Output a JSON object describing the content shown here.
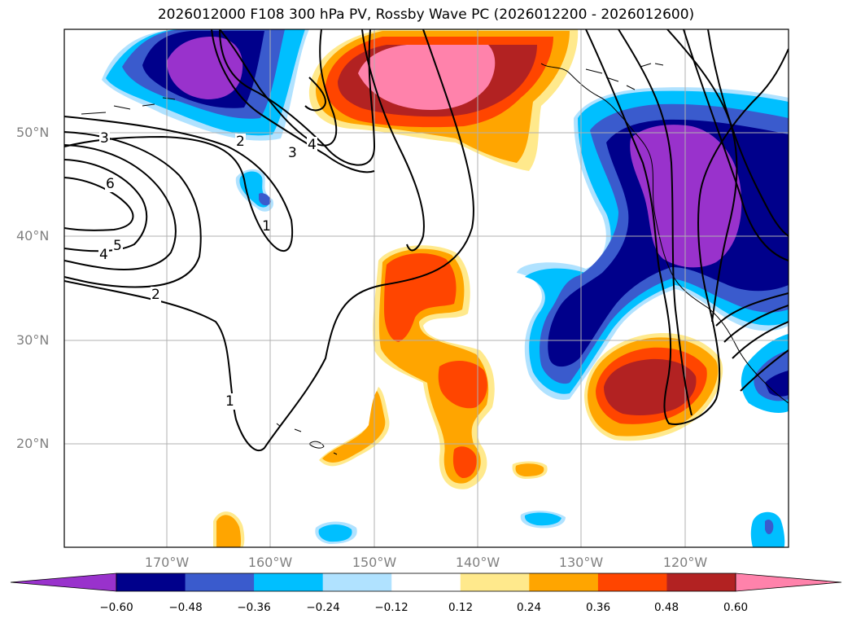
{
  "title": "2026012000 F108 300 hPa PV, Rossby Wave PC (2026012200 - 2026012600)",
  "map": {
    "lat_labels": [
      "50°N",
      "40°N",
      "30°N",
      "20°N"
    ],
    "lon_labels": [
      "170°W",
      "160°W",
      "150°W",
      "140°W",
      "130°W",
      "120°W"
    ],
    "contour_labels": [
      "3",
      "6",
      "5",
      "4",
      "2",
      "1",
      "2",
      "3",
      "4",
      "1"
    ],
    "colorbar": {
      "colors": [
        "#9932cc",
        "#00008b",
        "#3a5bcd",
        "#00bfff",
        "#b0e2ff",
        "#ffffff",
        "#ffe98c",
        "#ffa500",
        "#ff4500",
        "#b22222",
        "#ff82ab"
      ],
      "ticks": [
        "−0.60",
        "−0.48",
        "−0.36",
        "−0.24",
        "−0.12",
        "0.12",
        "0.24",
        "0.36",
        "0.48",
        "0.60"
      ]
    }
  }
}
